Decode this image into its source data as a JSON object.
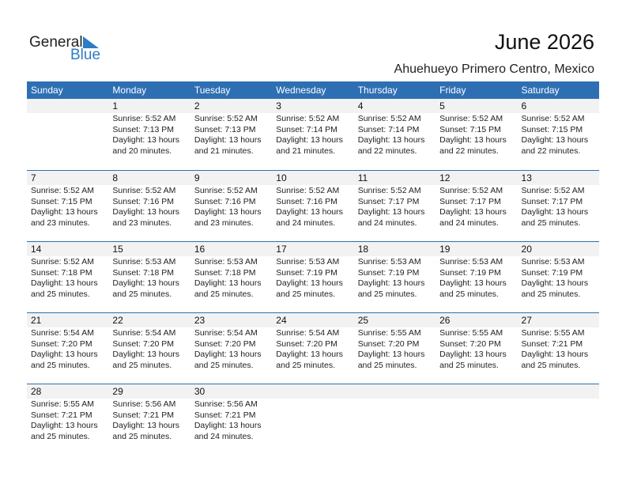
{
  "logo": {
    "text1": "General",
    "text2": "Blue",
    "accent": "#2e7cc4"
  },
  "title": "June 2026",
  "location": "Ahuehueyo Primero Centro, Mexico",
  "colors": {
    "header": "#2e6fb4",
    "dayband": "#f2f2f2"
  },
  "weekdays": [
    "Sunday",
    "Monday",
    "Tuesday",
    "Wednesday",
    "Thursday",
    "Friday",
    "Saturday"
  ],
  "weeks": [
    [
      null,
      {
        "day": "1",
        "sunrise": "Sunrise: 5:52 AM",
        "sunset": "Sunset: 7:13 PM",
        "daylight1": "Daylight: 13 hours",
        "daylight2": "and 20 minutes."
      },
      {
        "day": "2",
        "sunrise": "Sunrise: 5:52 AM",
        "sunset": "Sunset: 7:13 PM",
        "daylight1": "Daylight: 13 hours",
        "daylight2": "and 21 minutes."
      },
      {
        "day": "3",
        "sunrise": "Sunrise: 5:52 AM",
        "sunset": "Sunset: 7:14 PM",
        "daylight1": "Daylight: 13 hours",
        "daylight2": "and 21 minutes."
      },
      {
        "day": "4",
        "sunrise": "Sunrise: 5:52 AM",
        "sunset": "Sunset: 7:14 PM",
        "daylight1": "Daylight: 13 hours",
        "daylight2": "and 22 minutes."
      },
      {
        "day": "5",
        "sunrise": "Sunrise: 5:52 AM",
        "sunset": "Sunset: 7:15 PM",
        "daylight1": "Daylight: 13 hours",
        "daylight2": "and 22 minutes."
      },
      {
        "day": "6",
        "sunrise": "Sunrise: 5:52 AM",
        "sunset": "Sunset: 7:15 PM",
        "daylight1": "Daylight: 13 hours",
        "daylight2": "and 22 minutes."
      }
    ],
    [
      {
        "day": "7",
        "sunrise": "Sunrise: 5:52 AM",
        "sunset": "Sunset: 7:15 PM",
        "daylight1": "Daylight: 13 hours",
        "daylight2": "and 23 minutes."
      },
      {
        "day": "8",
        "sunrise": "Sunrise: 5:52 AM",
        "sunset": "Sunset: 7:16 PM",
        "daylight1": "Daylight: 13 hours",
        "daylight2": "and 23 minutes."
      },
      {
        "day": "9",
        "sunrise": "Sunrise: 5:52 AM",
        "sunset": "Sunset: 7:16 PM",
        "daylight1": "Daylight: 13 hours",
        "daylight2": "and 23 minutes."
      },
      {
        "day": "10",
        "sunrise": "Sunrise: 5:52 AM",
        "sunset": "Sunset: 7:16 PM",
        "daylight1": "Daylight: 13 hours",
        "daylight2": "and 24 minutes."
      },
      {
        "day": "11",
        "sunrise": "Sunrise: 5:52 AM",
        "sunset": "Sunset: 7:17 PM",
        "daylight1": "Daylight: 13 hours",
        "daylight2": "and 24 minutes."
      },
      {
        "day": "12",
        "sunrise": "Sunrise: 5:52 AM",
        "sunset": "Sunset: 7:17 PM",
        "daylight1": "Daylight: 13 hours",
        "daylight2": "and 24 minutes."
      },
      {
        "day": "13",
        "sunrise": "Sunrise: 5:52 AM",
        "sunset": "Sunset: 7:17 PM",
        "daylight1": "Daylight: 13 hours",
        "daylight2": "and 25 minutes."
      }
    ],
    [
      {
        "day": "14",
        "sunrise": "Sunrise: 5:52 AM",
        "sunset": "Sunset: 7:18 PM",
        "daylight1": "Daylight: 13 hours",
        "daylight2": "and 25 minutes."
      },
      {
        "day": "15",
        "sunrise": "Sunrise: 5:53 AM",
        "sunset": "Sunset: 7:18 PM",
        "daylight1": "Daylight: 13 hours",
        "daylight2": "and 25 minutes."
      },
      {
        "day": "16",
        "sunrise": "Sunrise: 5:53 AM",
        "sunset": "Sunset: 7:18 PM",
        "daylight1": "Daylight: 13 hours",
        "daylight2": "and 25 minutes."
      },
      {
        "day": "17",
        "sunrise": "Sunrise: 5:53 AM",
        "sunset": "Sunset: 7:19 PM",
        "daylight1": "Daylight: 13 hours",
        "daylight2": "and 25 minutes."
      },
      {
        "day": "18",
        "sunrise": "Sunrise: 5:53 AM",
        "sunset": "Sunset: 7:19 PM",
        "daylight1": "Daylight: 13 hours",
        "daylight2": "and 25 minutes."
      },
      {
        "day": "19",
        "sunrise": "Sunrise: 5:53 AM",
        "sunset": "Sunset: 7:19 PM",
        "daylight1": "Daylight: 13 hours",
        "daylight2": "and 25 minutes."
      },
      {
        "day": "20",
        "sunrise": "Sunrise: 5:53 AM",
        "sunset": "Sunset: 7:19 PM",
        "daylight1": "Daylight: 13 hours",
        "daylight2": "and 25 minutes."
      }
    ],
    [
      {
        "day": "21",
        "sunrise": "Sunrise: 5:54 AM",
        "sunset": "Sunset: 7:20 PM",
        "daylight1": "Daylight: 13 hours",
        "daylight2": "and 25 minutes."
      },
      {
        "day": "22",
        "sunrise": "Sunrise: 5:54 AM",
        "sunset": "Sunset: 7:20 PM",
        "daylight1": "Daylight: 13 hours",
        "daylight2": "and 25 minutes."
      },
      {
        "day": "23",
        "sunrise": "Sunrise: 5:54 AM",
        "sunset": "Sunset: 7:20 PM",
        "daylight1": "Daylight: 13 hours",
        "daylight2": "and 25 minutes."
      },
      {
        "day": "24",
        "sunrise": "Sunrise: 5:54 AM",
        "sunset": "Sunset: 7:20 PM",
        "daylight1": "Daylight: 13 hours",
        "daylight2": "and 25 minutes."
      },
      {
        "day": "25",
        "sunrise": "Sunrise: 5:55 AM",
        "sunset": "Sunset: 7:20 PM",
        "daylight1": "Daylight: 13 hours",
        "daylight2": "and 25 minutes."
      },
      {
        "day": "26",
        "sunrise": "Sunrise: 5:55 AM",
        "sunset": "Sunset: 7:20 PM",
        "daylight1": "Daylight: 13 hours",
        "daylight2": "and 25 minutes."
      },
      {
        "day": "27",
        "sunrise": "Sunrise: 5:55 AM",
        "sunset": "Sunset: 7:21 PM",
        "daylight1": "Daylight: 13 hours",
        "daylight2": "and 25 minutes."
      }
    ],
    [
      {
        "day": "28",
        "sunrise": "Sunrise: 5:55 AM",
        "sunset": "Sunset: 7:21 PM",
        "daylight1": "Daylight: 13 hours",
        "daylight2": "and 25 minutes."
      },
      {
        "day": "29",
        "sunrise": "Sunrise: 5:56 AM",
        "sunset": "Sunset: 7:21 PM",
        "daylight1": "Daylight: 13 hours",
        "daylight2": "and 25 minutes."
      },
      {
        "day": "30",
        "sunrise": "Sunrise: 5:56 AM",
        "sunset": "Sunset: 7:21 PM",
        "daylight1": "Daylight: 13 hours",
        "daylight2": "and 24 minutes."
      },
      null,
      null,
      null,
      null
    ]
  ]
}
